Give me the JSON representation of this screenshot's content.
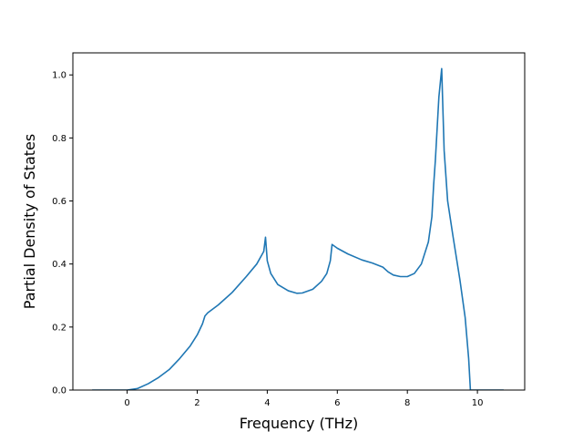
{
  "chart_data": {
    "type": "line",
    "title": "",
    "xlabel": "Frequency (THz)",
    "ylabel": "Partial Density of States",
    "xlim": [
      -1.55,
      11.35
    ],
    "ylim": [
      0.0,
      1.07
    ],
    "xticks": [
      0,
      2,
      4,
      6,
      8,
      10
    ],
    "xtick_labels": [
      "0",
      "2",
      "4",
      "6",
      "8",
      "10"
    ],
    "yticks": [
      0.0,
      0.2,
      0.4,
      0.6,
      0.8,
      1.0
    ],
    "ytick_labels": [
      "0.0",
      "0.2",
      "0.4",
      "0.6",
      "0.8",
      "1.0"
    ],
    "grid": false,
    "legend": "none",
    "series": [
      {
        "color": "#1f77b4",
        "x": [
          -1.0,
          -0.5,
          0.0,
          0.3,
          0.6,
          0.9,
          1.2,
          1.5,
          1.8,
          2.0,
          2.15,
          2.22,
          2.3,
          2.6,
          3.0,
          3.4,
          3.7,
          3.9,
          3.95,
          4.0,
          4.1,
          4.3,
          4.6,
          4.85,
          5.0,
          5.3,
          5.55,
          5.7,
          5.8,
          5.85,
          6.0,
          6.3,
          6.7,
          7.0,
          7.3,
          7.45,
          7.6,
          7.8,
          8.0,
          8.2,
          8.4,
          8.6,
          8.7,
          8.75,
          8.8,
          8.9,
          8.98,
          9.05,
          9.15,
          9.3,
          9.5,
          9.65,
          9.75,
          9.8,
          10.0,
          10.75
        ],
        "y": [
          0.0,
          0.0,
          0.0,
          0.005,
          0.02,
          0.04,
          0.065,
          0.1,
          0.14,
          0.175,
          0.21,
          0.235,
          0.245,
          0.27,
          0.31,
          0.36,
          0.4,
          0.44,
          0.485,
          0.41,
          0.37,
          0.335,
          0.315,
          0.307,
          0.308,
          0.32,
          0.345,
          0.37,
          0.41,
          0.462,
          0.45,
          0.432,
          0.413,
          0.403,
          0.39,
          0.375,
          0.365,
          0.36,
          0.36,
          0.37,
          0.4,
          0.47,
          0.55,
          0.65,
          0.73,
          0.93,
          1.02,
          0.76,
          0.6,
          0.49,
          0.35,
          0.23,
          0.1,
          0.0,
          0.0,
          0.0
        ]
      }
    ]
  }
}
